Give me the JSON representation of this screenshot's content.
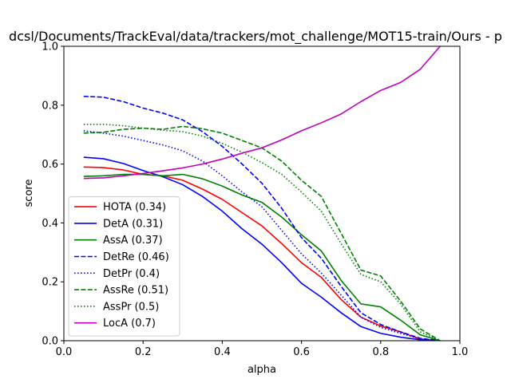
{
  "chart_data": {
    "type": "line",
    "title": "dcsl/Documents/TrackEval/data/trackers/mot_challenge/MOT15-train/Ours - p",
    "xlabel": "alpha",
    "ylabel": "score",
    "xlim": [
      0.0,
      1.0
    ],
    "ylim": [
      0.0,
      1.0
    ],
    "xticks": [
      "0.0",
      "0.2",
      "0.4",
      "0.6",
      "0.8",
      "1.0"
    ],
    "yticks": [
      "0.0",
      "0.2",
      "0.4",
      "0.6",
      "0.8",
      "1.0"
    ],
    "grid": false,
    "legend_position": "lower-left",
    "x": [
      0.05,
      0.1,
      0.15,
      0.2,
      0.25,
      0.3,
      0.35,
      0.4,
      0.45,
      0.5,
      0.55,
      0.6,
      0.65,
      0.7,
      0.75,
      0.8,
      0.85,
      0.9,
      0.95
    ],
    "series": [
      {
        "name": "HOTA (0.34)",
        "color": "#ff0000",
        "dash": "solid",
        "values": [
          0.59,
          0.588,
          0.58,
          0.565,
          0.56,
          0.545,
          0.515,
          0.48,
          0.435,
          0.39,
          0.33,
          0.265,
          0.215,
          0.14,
          0.08,
          0.05,
          0.03,
          0.005,
          0.0
        ]
      },
      {
        "name": "DetA (0.31)",
        "color": "#0000ff",
        "dash": "solid",
        "values": [
          0.623,
          0.618,
          0.602,
          0.578,
          0.557,
          0.53,
          0.49,
          0.44,
          0.38,
          0.328,
          0.265,
          0.195,
          0.148,
          0.095,
          0.048,
          0.025,
          0.012,
          0.003,
          0.0
        ]
      },
      {
        "name": "AssA (0.37)",
        "color": "#008000",
        "dash": "solid",
        "values": [
          0.558,
          0.56,
          0.565,
          0.565,
          0.56,
          0.565,
          0.55,
          0.525,
          0.495,
          0.47,
          0.42,
          0.36,
          0.305,
          0.205,
          0.125,
          0.115,
          0.07,
          0.02,
          0.0
        ]
      },
      {
        "name": "DetRe (0.46)",
        "color": "#0000ff",
        "dash": "dashed",
        "values": [
          0.83,
          0.827,
          0.812,
          0.79,
          0.773,
          0.75,
          0.71,
          0.66,
          0.6,
          0.535,
          0.45,
          0.35,
          0.28,
          0.185,
          0.095,
          0.055,
          0.03,
          0.008,
          0.0
        ]
      },
      {
        "name": "DetPr (0.4)",
        "color": "#0000ff",
        "dash": "dotted",
        "values": [
          0.713,
          0.705,
          0.695,
          0.68,
          0.665,
          0.645,
          0.61,
          0.56,
          0.505,
          0.455,
          0.375,
          0.295,
          0.23,
          0.155,
          0.08,
          0.045,
          0.025,
          0.006,
          0.0
        ]
      },
      {
        "name": "AssRe (0.51)",
        "color": "#008000",
        "dash": "dashed",
        "values": [
          0.705,
          0.708,
          0.718,
          0.722,
          0.718,
          0.728,
          0.72,
          0.705,
          0.68,
          0.655,
          0.61,
          0.545,
          0.49,
          0.365,
          0.24,
          0.22,
          0.135,
          0.04,
          0.0
        ]
      },
      {
        "name": "AssPr (0.5)",
        "color": "#008000",
        "dash": "dotted",
        "values": [
          0.735,
          0.735,
          0.73,
          0.722,
          0.715,
          0.71,
          0.695,
          0.67,
          0.64,
          0.605,
          0.565,
          0.505,
          0.44,
          0.33,
          0.225,
          0.2,
          0.125,
          0.03,
          0.0
        ]
      },
      {
        "name": "LocA (0.7)",
        "color": "#bf00bf",
        "dash": "solid",
        "values": [
          0.551,
          0.553,
          0.56,
          0.568,
          0.577,
          0.587,
          0.6,
          0.617,
          0.637,
          0.655,
          0.682,
          0.713,
          0.74,
          0.77,
          0.812,
          0.85,
          0.877,
          0.922,
          1.0
        ]
      }
    ]
  }
}
